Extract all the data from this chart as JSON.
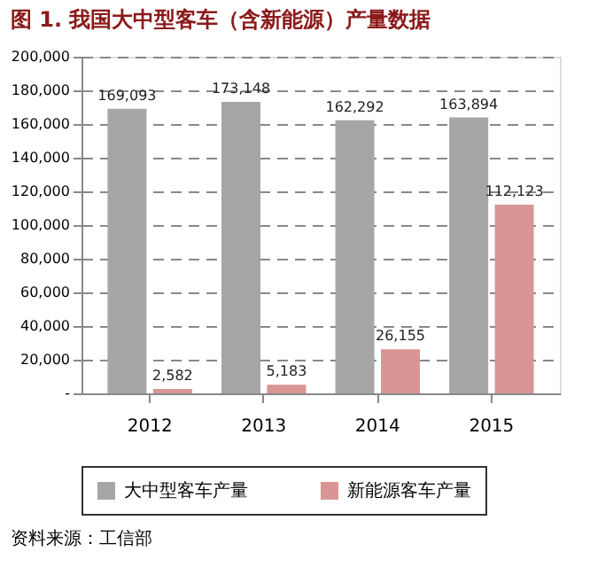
{
  "chart_data": {
    "type": "bar",
    "title": "图 1. 我国大中型客车（含新能源）产量数据",
    "categories": [
      "2012",
      "2013",
      "2014",
      "2015"
    ],
    "series": [
      {
        "name": "大中型客车产量",
        "color": "#a6a6a6",
        "values": [
          169093,
          173148,
          162292,
          163894
        ],
        "value_labels": [
          "169,093",
          "173,148",
          "162,292",
          "163,894"
        ]
      },
      {
        "name": "新能源客车产量",
        "color": "#d99594",
        "values": [
          2582,
          5183,
          26155,
          112123
        ],
        "value_labels": [
          "2,582",
          "5,183",
          "26,155",
          "112,123"
        ]
      }
    ],
    "ylim": [
      0,
      200000
    ],
    "yticks": [
      {
        "value": 0,
        "label": "-"
      },
      {
        "value": 20000,
        "label": "20,000"
      },
      {
        "value": 40000,
        "label": "40,000"
      },
      {
        "value": 60000,
        "label": "60,000"
      },
      {
        "value": 80000,
        "label": "80,000"
      },
      {
        "value": 100000,
        "label": "100,000"
      },
      {
        "value": 120000,
        "label": "120,000"
      },
      {
        "value": 140000,
        "label": "140,000"
      },
      {
        "value": 160000,
        "label": "160,000"
      },
      {
        "value": 180000,
        "label": "180,000"
      },
      {
        "value": 200000,
        "label": "200,000"
      }
    ],
    "grid": "y",
    "legend": "bottom",
    "annotations": [
      "资料来源：工信部"
    ]
  }
}
